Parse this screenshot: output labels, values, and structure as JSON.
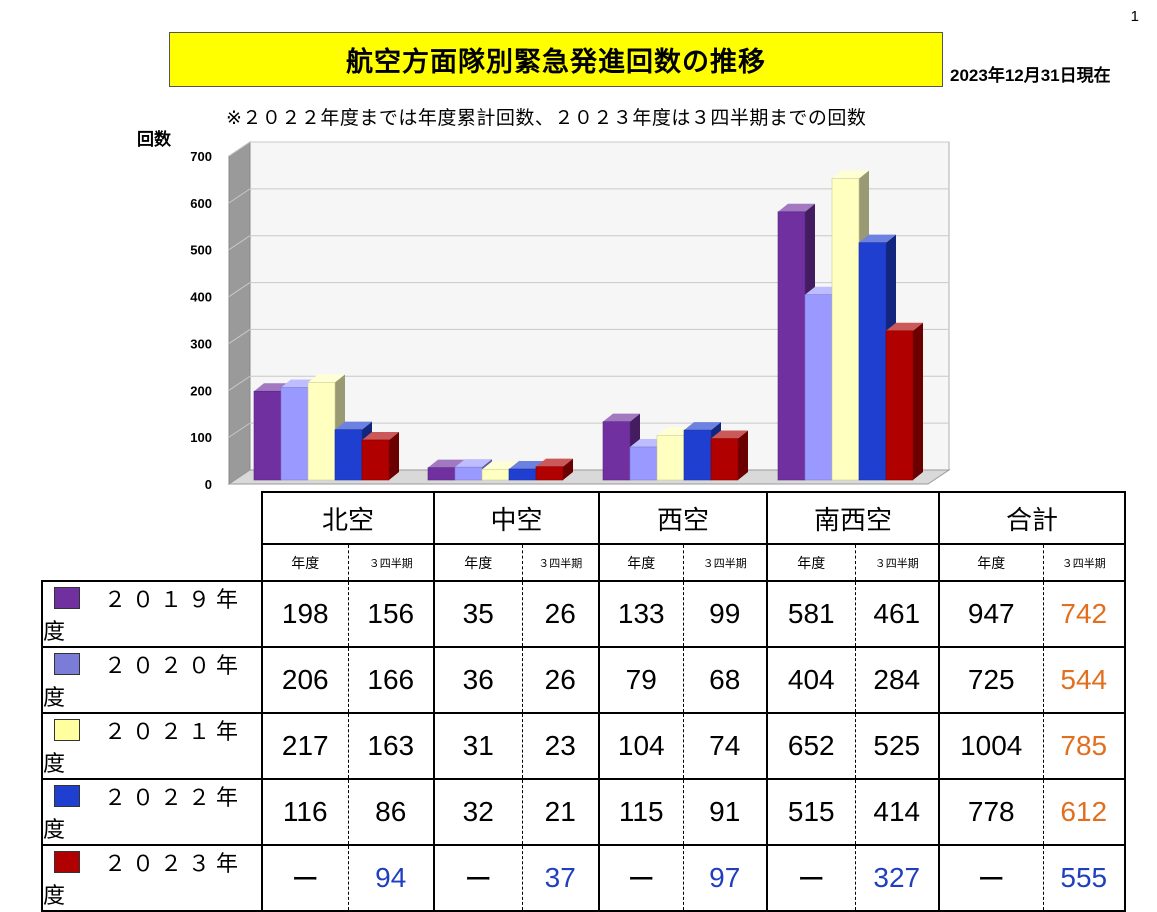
{
  "page_number": "1",
  "title": "航空方面隊別緊急発進回数の推移",
  "as_of": "2023年12月31日現在",
  "note": "※２０２２年度までは年度累計回数、２０２３年度は３四半期までの回数",
  "colors": {
    "title_bg": "#ffff00",
    "blue_value": "#1f3fbf",
    "orange_value": "#e07020"
  },
  "chart_data": {
    "type": "bar",
    "ylabel": "回数",
    "ylim": [
      0,
      700
    ],
    "yticks": [
      "0",
      "100",
      "200",
      "300",
      "400",
      "500",
      "600",
      "700"
    ],
    "grid": true,
    "categories": [
      "北空",
      "中空",
      "西空",
      "南西空"
    ],
    "series": [
      {
        "name": "２０１９年度",
        "color": "#7030a0",
        "values": [
          198,
          35,
          133,
          581
        ]
      },
      {
        "name": "２０２０年度",
        "color": "#9999ff",
        "values": [
          206,
          36,
          79,
          404
        ]
      },
      {
        "name": "２０２１年度",
        "color": "#ffffc0",
        "values": [
          217,
          31,
          104,
          652
        ]
      },
      {
        "name": "２０２２年度",
        "color": "#1f3fd0",
        "values": [
          116,
          32,
          115,
          515
        ]
      },
      {
        "name": "２０２３年度",
        "color": "#b00000",
        "values": [
          94,
          37,
          97,
          327
        ]
      }
    ]
  },
  "table": {
    "regions": [
      "北空",
      "中空",
      "西空",
      "南西空",
      "合計"
    ],
    "sub_year": "年度",
    "sub_quarter": "３四半期",
    "rows": [
      {
        "label": "２０１９年度",
        "color": "#7030a0",
        "cells": [
          "198",
          "156",
          "35",
          "26",
          "133",
          "99",
          "581",
          "461",
          "947",
          "742"
        ]
      },
      {
        "label": "２０２０年度",
        "color": "#7b7bd8",
        "cells": [
          "206",
          "166",
          "36",
          "26",
          "79",
          "68",
          "404",
          "284",
          "725",
          "544"
        ]
      },
      {
        "label": "２０２１年度",
        "color": "#ffffa0",
        "cells": [
          "217",
          "163",
          "31",
          "23",
          "104",
          "74",
          "652",
          "525",
          "1004",
          "785"
        ]
      },
      {
        "label": "２０２２年度",
        "color": "#1f3fd0",
        "cells": [
          "116",
          "86",
          "32",
          "21",
          "115",
          "91",
          "515",
          "414",
          "778",
          "612"
        ]
      },
      {
        "label": "２０２３年度",
        "color": "#b00000",
        "cells": [
          "ー",
          "94",
          "ー",
          "37",
          "ー",
          "97",
          "ー",
          "327",
          "ー",
          "555"
        ]
      }
    ],
    "cell_colors": [
      [
        "",
        "",
        "",
        "",
        "",
        "",
        "",
        "",
        "",
        "#e07020"
      ],
      [
        "",
        "",
        "",
        "",
        "",
        "",
        "",
        "",
        "",
        "#e07020"
      ],
      [
        "",
        "",
        "",
        "",
        "",
        "",
        "",
        "",
        "",
        "#e07020"
      ],
      [
        "",
        "",
        "",
        "",
        "",
        "",
        "",
        "",
        "",
        "#e07020"
      ],
      [
        "",
        "#1f3fbf",
        "",
        "#1f3fbf",
        "",
        "#1f3fbf",
        "",
        "#1f3fbf",
        "",
        "#1f3fbf"
      ]
    ]
  }
}
